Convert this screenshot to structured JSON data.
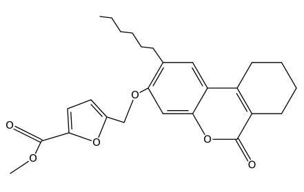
{
  "nodes": [
    {
      "label": "O"
    },
    {
      "label": "O"
    },
    {
      "label": "O"
    },
    {
      "label": "O"
    },
    {
      "label": "O"
    },
    {
      "label": "O"
    }
  ]
}
